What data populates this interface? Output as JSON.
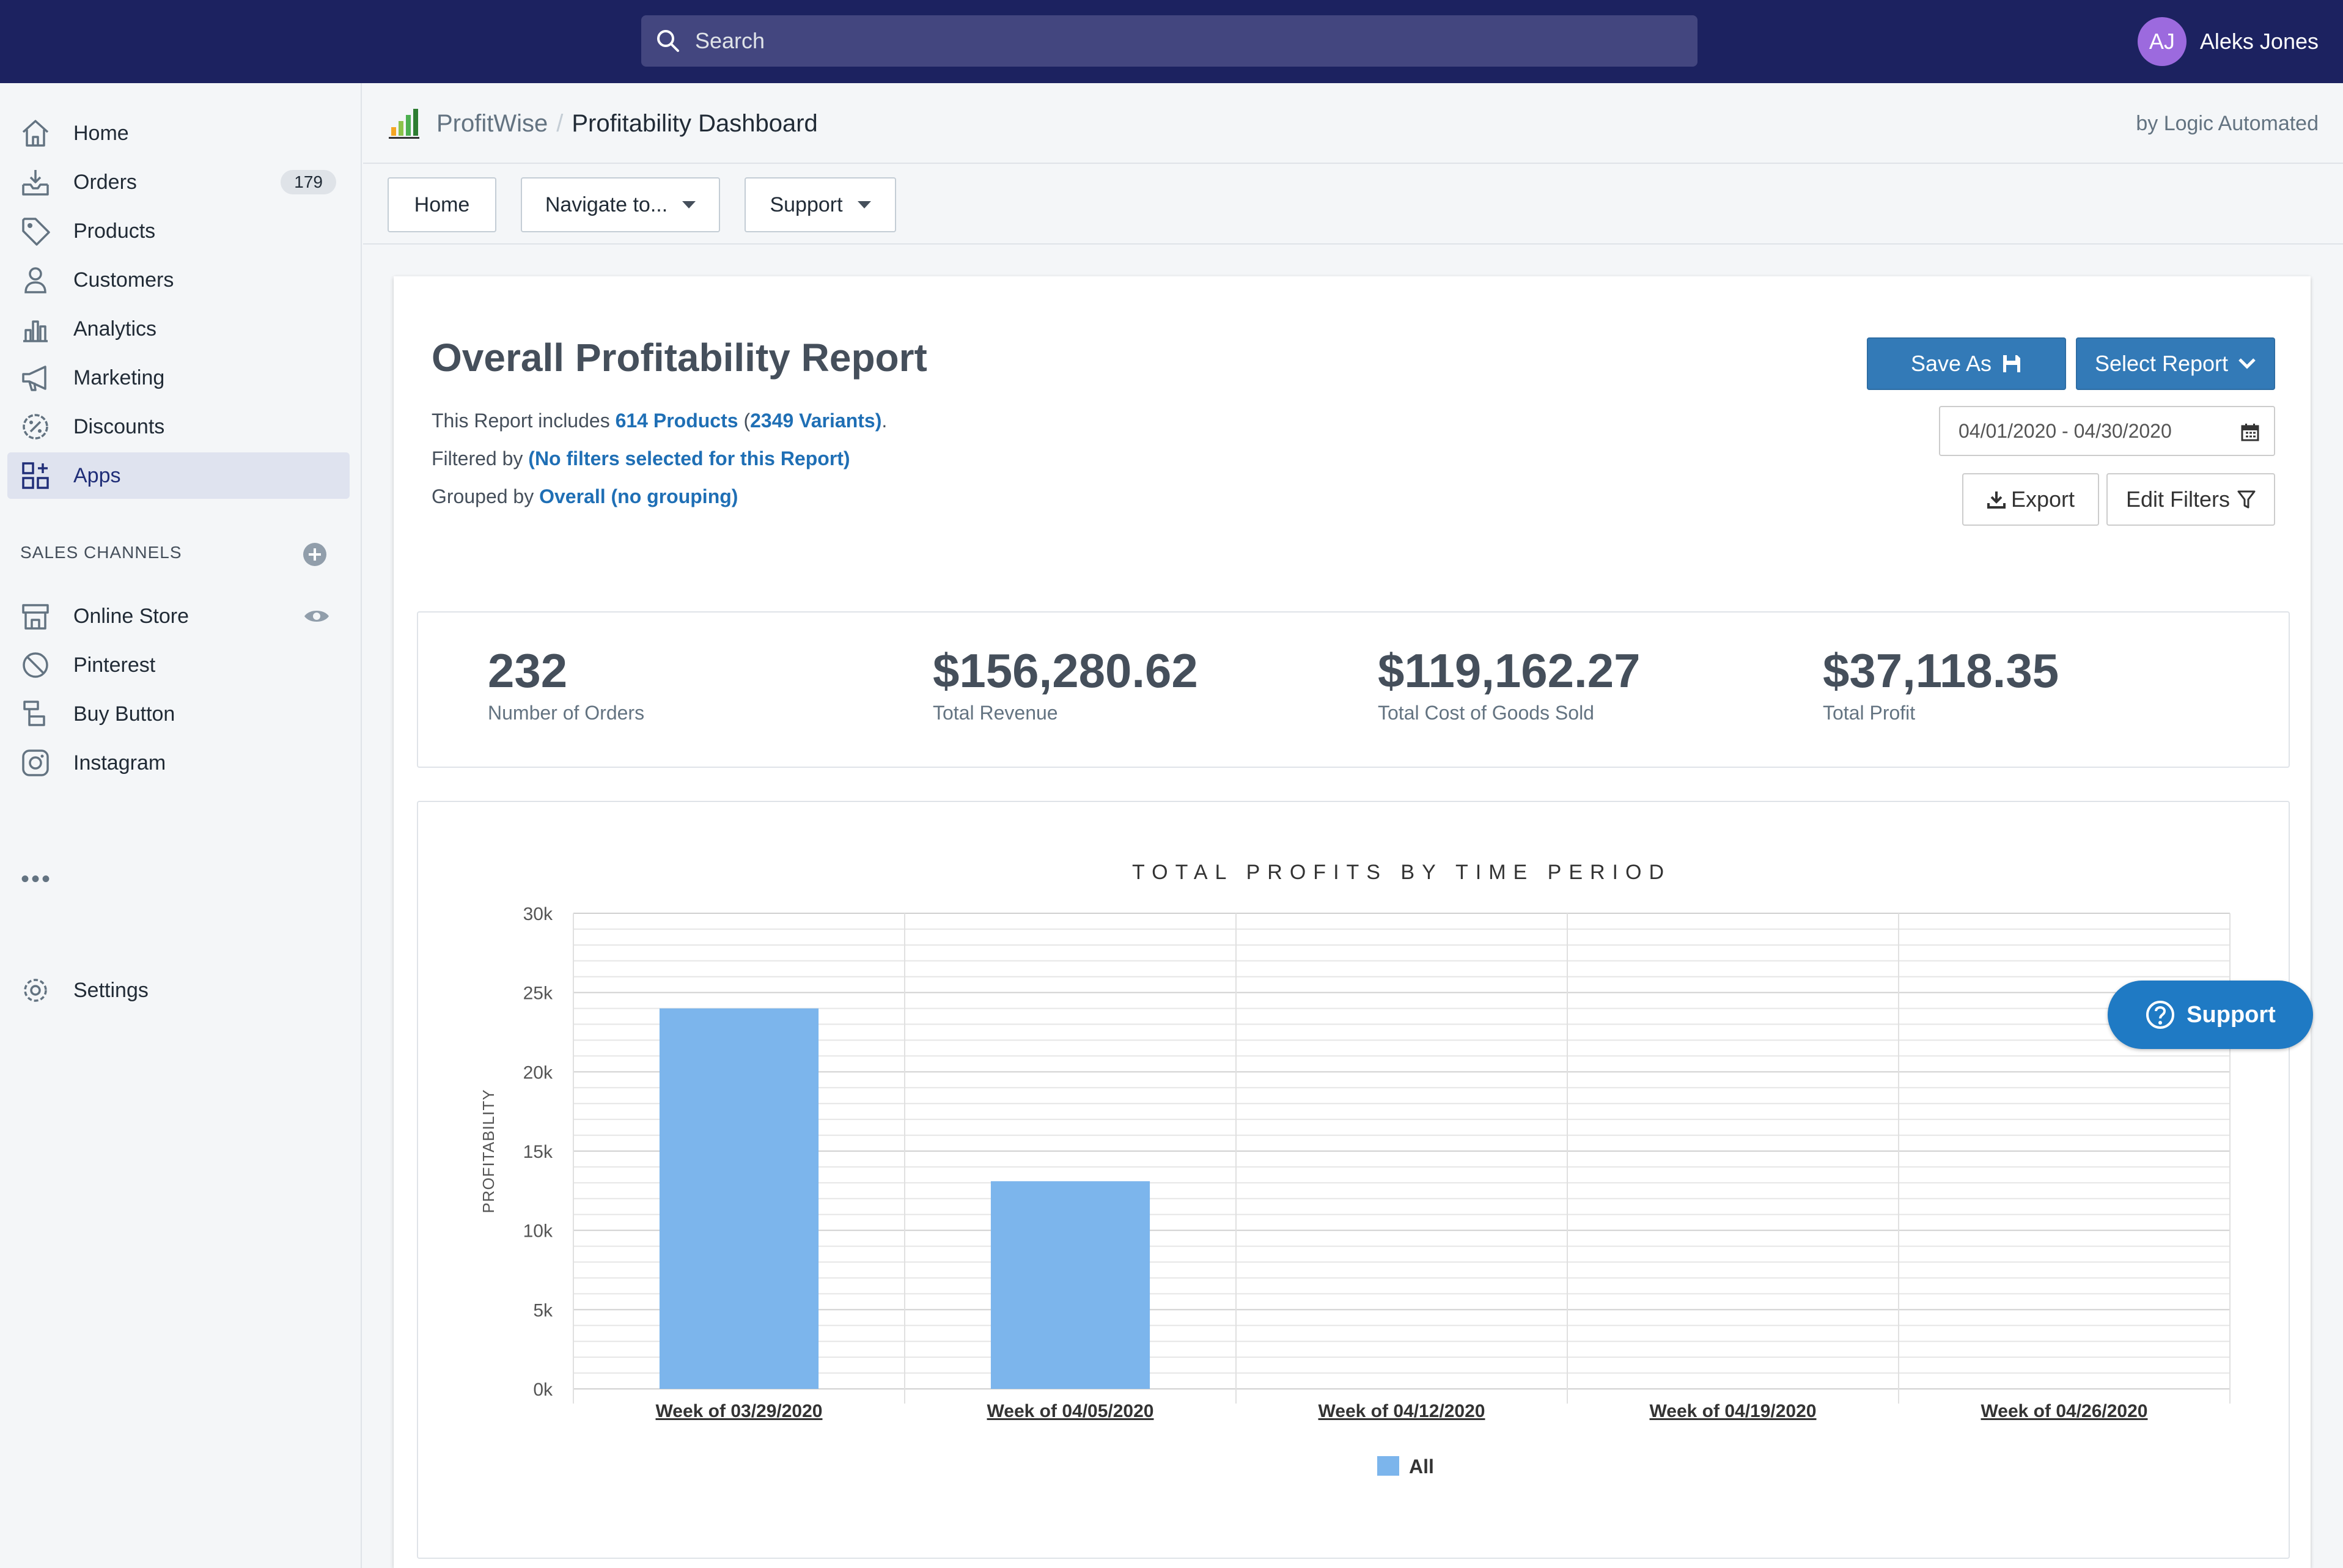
{
  "topbar": {
    "search_placeholder": "Search",
    "user_initials": "AJ",
    "user_name": "Aleks Jones"
  },
  "sidebar": {
    "items": [
      {
        "label": "Home",
        "icon": "home-icon"
      },
      {
        "label": "Orders",
        "icon": "orders-icon",
        "badge": "179"
      },
      {
        "label": "Products",
        "icon": "tag-icon"
      },
      {
        "label": "Customers",
        "icon": "person-icon"
      },
      {
        "label": "Analytics",
        "icon": "bar-chart-icon"
      },
      {
        "label": "Marketing",
        "icon": "megaphone-icon"
      },
      {
        "label": "Discounts",
        "icon": "discount-icon"
      },
      {
        "label": "Apps",
        "icon": "apps-icon",
        "active": true
      }
    ],
    "channels_heading": "SALES CHANNELS",
    "channels": [
      {
        "label": "Online Store",
        "icon": "store-icon"
      },
      {
        "label": "Pinterest",
        "icon": "pinterest-icon"
      },
      {
        "label": "Buy Button",
        "icon": "buy-button-icon"
      },
      {
        "label": "Instagram",
        "icon": "instagram-icon"
      }
    ],
    "more": "•••",
    "settings_label": "Settings"
  },
  "header": {
    "app_name": "ProfitWise",
    "separator": "/",
    "page_name": "Profitability Dashboard",
    "byline": "by Logic Automated"
  },
  "toolbar": {
    "home_label": "Home",
    "navigate_label": "Navigate to...",
    "support_label": "Support"
  },
  "report": {
    "title": "Overall Profitability Report",
    "includes_prefix": "This Report includes ",
    "products_link": "614 Products",
    "paren_open": " (",
    "variants_link": "2349 Variants)",
    "period": ".",
    "filtered_prefix": "Filtered by ",
    "filtered_link": "(No filters selected for this Report)",
    "grouped_prefix": "Grouped by ",
    "grouped_link": "Overall (no grouping)",
    "save_as_label": "Save As",
    "select_report_label": "Select Report",
    "date_range": "04/01/2020 - 04/30/2020",
    "export_label": "Export",
    "edit_filters_label": "Edit Filters"
  },
  "stats": [
    {
      "value": "232",
      "label": "Number of Orders"
    },
    {
      "value": "$156,280.62",
      "label": "Total Revenue"
    },
    {
      "value": "$119,162.27",
      "label": "Total Cost of Goods Sold"
    },
    {
      "value": "$37,118.35",
      "label": "Total Profit"
    }
  ],
  "floating_support_label": "Support",
  "chart_data": {
    "type": "bar",
    "title": "TOTAL PROFITS BY TIME PERIOD",
    "xlabel": "",
    "ylabel": "PROFITABILITY",
    "categories": [
      "Week of 03/29/2020",
      "Week of 04/05/2020",
      "Week of 04/12/2020",
      "Week of 04/19/2020",
      "Week of 04/26/2020"
    ],
    "series": [
      {
        "name": "All",
        "values": [
          24000,
          13100,
          0,
          0,
          0
        ],
        "color": "#7cb5ec"
      }
    ],
    "yticks": [
      "0k",
      "5k",
      "10k",
      "15k",
      "20k",
      "25k",
      "30k"
    ],
    "ylim": [
      0,
      30000
    ],
    "grid": true,
    "legend": "bottom"
  },
  "colors": {
    "topbar": "#1c2260",
    "link": "#1f6fb5",
    "primary_button": "#337ab7",
    "bar": "#7cb5ec"
  }
}
